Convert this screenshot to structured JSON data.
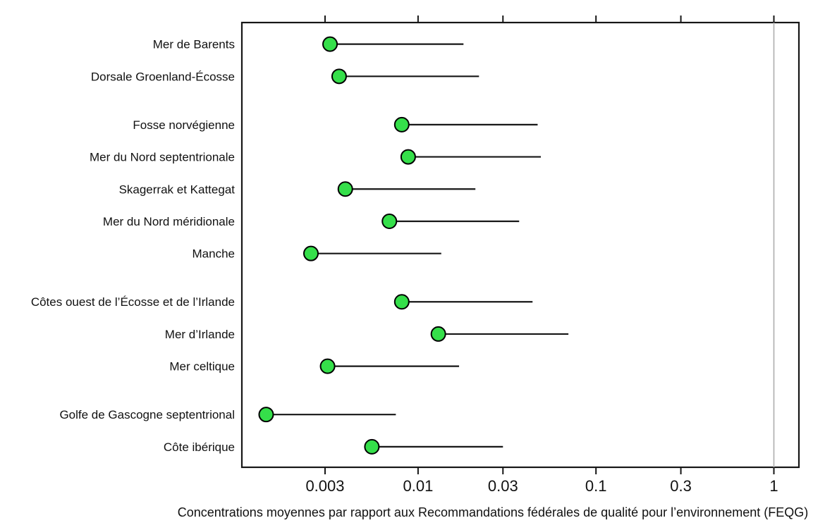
{
  "chart_data": {
    "type": "scatter",
    "subtype": "dot-range-plot",
    "title": "",
    "xlabel": "Concentrations moyennes par rapport aux Recommandations fédérales de qualité pour l’environnement (FEQG)",
    "ylabel": "",
    "x_scale": "log",
    "xlim": [
      0.001,
      1.4
    ],
    "x_ticks": [
      0.003,
      0.01,
      0.03,
      0.1,
      0.3,
      1
    ],
    "x_tick_labels": [
      "0.003",
      "0.01",
      "0.03",
      "0.1",
      "0.3",
      "1"
    ],
    "reference_line_x": 1,
    "grid": false,
    "legend": "none",
    "groups": [
      {
        "items": [
          {
            "label": "Mer de Barents",
            "mean": 0.0032,
            "max": 0.018
          },
          {
            "label": "Dorsale Groenland-Écosse",
            "mean": 0.0036,
            "max": 0.022
          }
        ]
      },
      {
        "items": [
          {
            "label": "Fosse norvégienne",
            "mean": 0.0081,
            "max": 0.047
          },
          {
            "label": "Mer du Nord septentrionale",
            "mean": 0.0088,
            "max": 0.049
          },
          {
            "label": "Skagerrak et Kattegat",
            "mean": 0.0039,
            "max": 0.021
          },
          {
            "label": "Mer du Nord méridionale",
            "mean": 0.0069,
            "max": 0.037
          },
          {
            "label": "Manche",
            "mean": 0.0025,
            "max": 0.0135
          }
        ]
      },
      {
        "items": [
          {
            "label": "Côtes ouest de l’Écosse et de l’Irlande",
            "mean": 0.0081,
            "max": 0.044
          },
          {
            "label": "Mer d’Irlande",
            "mean": 0.013,
            "max": 0.07
          },
          {
            "label": "Mer celtique",
            "mean": 0.0031,
            "max": 0.017
          }
        ]
      },
      {
        "items": [
          {
            "label": "Golfe de Gascogne septentrional",
            "mean": 0.0014,
            "max": 0.0075
          },
          {
            "label": "Côte ibérique",
            "mean": 0.0055,
            "max": 0.03
          }
        ]
      }
    ],
    "colors": {
      "dot_fill": "#35df4a",
      "dot_stroke": "#000000",
      "segment": "#161616",
      "reference_line": "#aeaeae",
      "box": "#161616",
      "text": "#111111",
      "background": "#ffffff"
    }
  }
}
